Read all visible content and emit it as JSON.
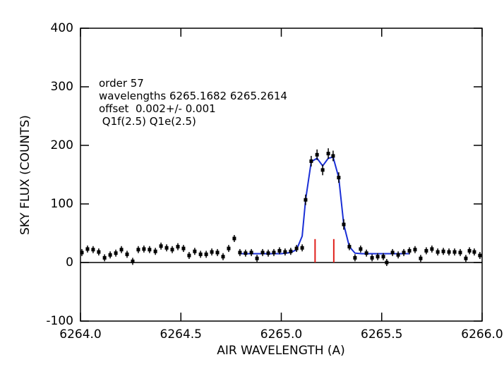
{
  "chart_data": {
    "type": "scatter",
    "xlabel": "AIR WAVELENGTH (A)",
    "ylabel": "SKY FLUX (COUNTS)",
    "annotations": [
      "order 57",
      "wavelengths 6265.1682 6265.2614",
      "offset  0.002+/- 0.001",
      " Q1f(2.5) Q1e(2.5)"
    ],
    "xlim": [
      6264.0,
      6266.0
    ],
    "ylim": [
      -100,
      400
    ],
    "xticks": [
      {
        "value": 6264.0,
        "label": "6264.0"
      },
      {
        "value": 6264.5,
        "label": "6264.5"
      },
      {
        "value": 6265.0,
        "label": "6265.0"
      },
      {
        "value": 6265.5,
        "label": "6265.5"
      },
      {
        "value": 6266.0,
        "label": "6266.0"
      }
    ],
    "yticks": [
      -100,
      0,
      100,
      200,
      300,
      400
    ],
    "color": "#000000",
    "x": [
      6264.007,
      6264.035,
      6264.063,
      6264.091,
      6264.12,
      6264.148,
      6264.176,
      6264.204,
      6264.232,
      6264.26,
      6264.288,
      6264.316,
      6264.344,
      6264.373,
      6264.401,
      6264.429,
      6264.457,
      6264.485,
      6264.513,
      6264.541,
      6264.569,
      6264.598,
      6264.626,
      6264.654,
      6264.682,
      6264.71,
      6264.738,
      6264.766,
      6264.794,
      6264.822,
      6264.851,
      6264.879,
      6264.907,
      6264.935,
      6264.963,
      6264.991,
      6265.019,
      6265.047,
      6265.076,
      6265.104,
      6265.121,
      6265.149,
      6265.178,
      6265.206,
      6265.234,
      6265.258,
      6265.286,
      6265.311,
      6265.339,
      6265.367,
      6265.395,
      6265.424,
      6265.452,
      6265.48,
      6265.508,
      6265.525,
      6265.554,
      6265.582,
      6265.61,
      6265.638,
      6265.666,
      6265.694,
      6265.722,
      6265.75,
      6265.779,
      6265.807,
      6265.835,
      6265.863,
      6265.891,
      6265.919,
      6265.937,
      6265.961,
      6265.989
    ],
    "values": [
      17,
      23,
      22,
      18,
      8,
      13,
      16,
      22,
      14,
      2,
      22,
      23,
      22,
      19,
      28,
      25,
      22,
      27,
      24,
      12,
      19,
      14,
      14,
      18,
      17,
      10,
      24,
      41,
      17,
      16,
      17,
      7,
      17,
      16,
      17,
      20,
      18,
      19,
      24,
      25,
      107,
      173,
      184,
      158,
      186,
      182,
      145,
      65,
      27,
      8,
      23,
      16,
      8,
      10,
      10,
      0,
      17,
      13,
      17,
      20,
      22,
      7,
      20,
      23,
      18,
      19,
      18,
      18,
      17,
      7,
      20,
      18,
      12
    ],
    "errors": [
      6,
      6,
      6,
      6,
      6,
      6,
      6,
      6,
      6,
      6,
      6,
      6,
      6,
      6,
      6,
      6,
      6,
      6,
      6,
      6,
      6,
      6,
      6,
      6,
      6,
      6,
      6,
      6,
      6,
      6,
      6,
      6,
      6,
      6,
      6,
      6,
      6,
      6,
      6,
      6,
      9,
      9,
      9,
      9,
      9,
      9,
      9,
      9,
      6,
      6,
      6,
      6,
      6,
      6,
      6,
      6,
      6,
      6,
      6,
      6,
      6,
      6,
      6,
      6,
      6,
      6,
      6,
      6,
      6,
      6,
      6,
      6,
      6
    ],
    "fit": {
      "color": "#1a2fd6",
      "x": [
        6264.794,
        6265.0,
        6265.047,
        6265.076,
        6265.104,
        6265.121,
        6265.149,
        6265.178,
        6265.206,
        6265.234,
        6265.258,
        6265.286,
        6265.311,
        6265.339,
        6265.367,
        6265.4,
        6265.638
      ],
      "values": [
        15,
        15,
        17,
        22,
        45,
        107,
        172,
        178,
        165,
        178,
        180,
        145,
        65,
        27,
        16,
        15,
        15
      ]
    },
    "markers": {
      "color": "#e0201c",
      "x": [
        6265.1682,
        6265.2614
      ],
      "values": [
        40,
        40
      ]
    }
  }
}
